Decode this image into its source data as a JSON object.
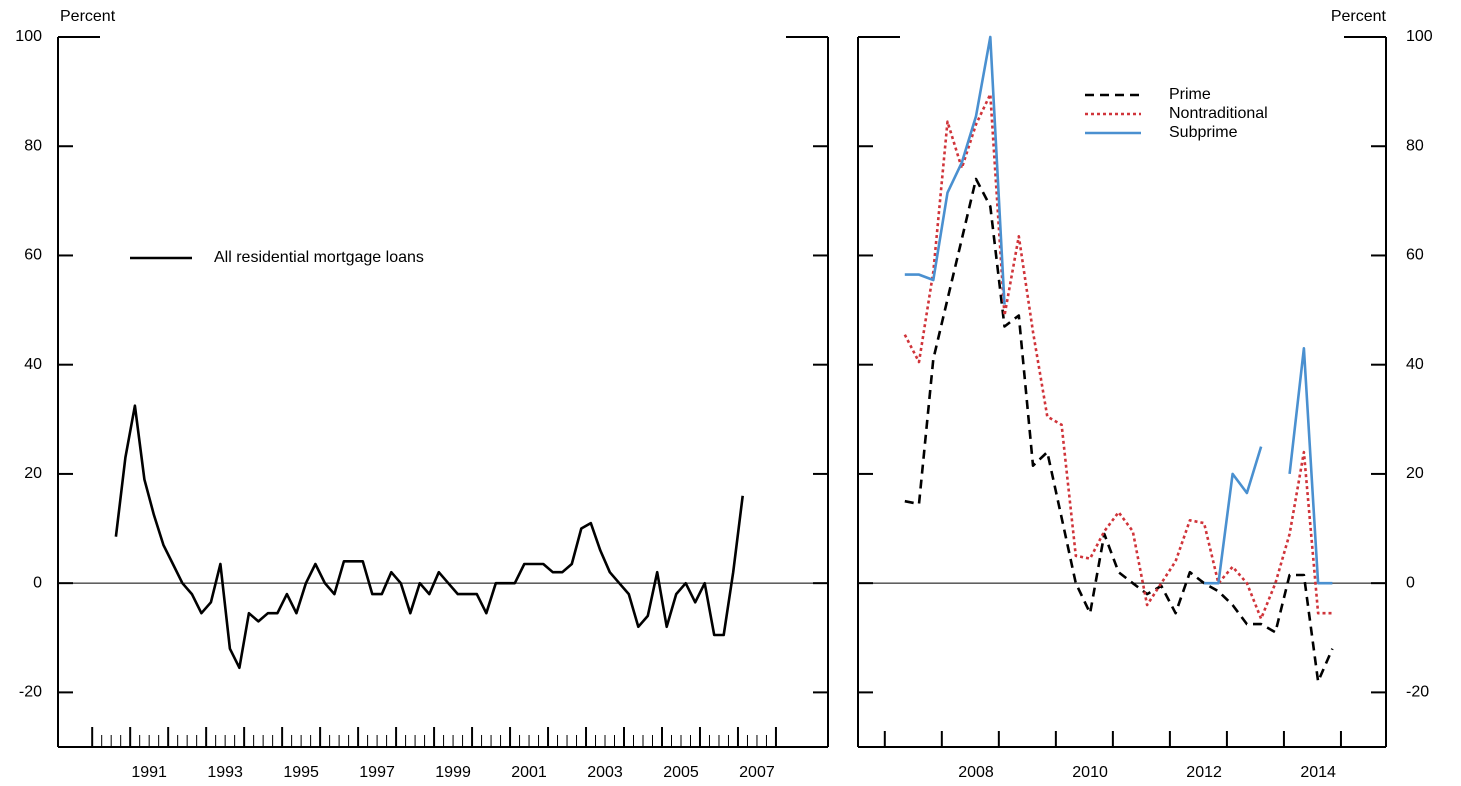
{
  "chart_data": [
    {
      "type": "line",
      "y_label": "Percent",
      "x": [
        1990.625,
        1990.875,
        1991.125,
        1991.375,
        1991.625,
        1991.875,
        1992.125,
        1992.375,
        1992.625,
        1992.875,
        1993.125,
        1993.375,
        1993.625,
        1993.875,
        1994.125,
        1994.375,
        1994.625,
        1994.875,
        1995.125,
        1995.375,
        1995.625,
        1995.875,
        1996.125,
        1996.375,
        1996.625,
        1996.875,
        1997.125,
        1997.375,
        1997.625,
        1997.875,
        1998.125,
        1998.375,
        1998.625,
        1998.875,
        1999.125,
        1999.375,
        1999.625,
        1999.875,
        2000.125,
        2000.375,
        2000.625,
        2000.875,
        2001.125,
        2001.375,
        2001.625,
        2001.875,
        2002.125,
        2002.375,
        2002.625,
        2002.875,
        2003.125,
        2003.375,
        2003.625,
        2003.875,
        2004.125,
        2004.375,
        2004.625,
        2004.875,
        2005.125,
        2005.375,
        2005.625,
        2005.875,
        2006.125,
        2006.375,
        2006.625,
        2006.875,
        2007.125
      ],
      "series": [
        {
          "name": "All residential mortgage loans",
          "color": "#000000",
          "dash": "none",
          "values": [
            8.5,
            23,
            32.5,
            19,
            12.5,
            7,
            3.5,
            0,
            -2,
            -5.5,
            -3.5,
            3.5,
            -12,
            -15.5,
            -5.5,
            -7,
            -5.5,
            -5.5,
            -2,
            -5.5,
            0,
            3.5,
            0,
            -2,
            4,
            4,
            4,
            -2,
            -2,
            2,
            0,
            -5.5,
            0,
            -2,
            2,
            0,
            -2,
            -2,
            -2,
            -5.5,
            0,
            0,
            0,
            3.5,
            3.5,
            3.5,
            2,
            2,
            3.5,
            10,
            11,
            6,
            2,
            0,
            -2,
            -8,
            -6,
            2,
            -8,
            -2,
            0,
            -3.5,
            0,
            -9.5,
            -9.5,
            2,
            16
          ]
        }
      ],
      "xlim": [
        1989.1,
        2009.37
      ],
      "xticks": [
        {
          "value": 1991.5,
          "label": "1991"
        },
        {
          "value": 1993.5,
          "label": "1993"
        },
        {
          "value": 1995.5,
          "label": "1995"
        },
        {
          "value": 1997.5,
          "label": "1997"
        },
        {
          "value": 1999.5,
          "label": "1999"
        },
        {
          "value": 2001.5,
          "label": "2001"
        },
        {
          "value": 2003.5,
          "label": "2003"
        },
        {
          "value": 2005.5,
          "label": "2005"
        },
        {
          "value": 2007.5,
          "label": "2007"
        }
      ],
      "ylim": [
        -30,
        100
      ],
      "yticks": [
        -20,
        0,
        20,
        40,
        60,
        80,
        100
      ],
      "axis_side": "left"
    },
    {
      "type": "line",
      "y_label": "Percent",
      "x": [
        2006.75,
        2007,
        2007.25,
        2007.5,
        2007.75,
        2008,
        2008.25,
        2008.5,
        2008.75,
        2009,
        2009.25,
        2009.5,
        2009.75,
        2010,
        2010.25,
        2010.5,
        2010.75,
        2011,
        2011.25,
        2011.5,
        2011.75,
        2012,
        2012.25,
        2012.5,
        2012.75,
        2013,
        2013.25,
        2013.5,
        2013.75,
        2014,
        2014.25
      ],
      "series": [
        {
          "name": "Prime",
          "color": "#000000",
          "dash": "9,6",
          "values": [
            15,
            14.5,
            41,
            52,
            63,
            74,
            69,
            47,
            49,
            21.5,
            24,
            12,
            0,
            -5.5,
            9,
            2,
            0,
            -2,
            -0.5,
            -5.5,
            2,
            0,
            -1.5,
            -4,
            -7.5,
            -7.5,
            -9,
            1.5,
            1.5,
            -18,
            -12
          ]
        },
        {
          "name": "Nontraditional",
          "color": "#d0343a",
          "dash": "3,3",
          "values": [
            45.5,
            40.5,
            57,
            84.5,
            76,
            84,
            89.5,
            49,
            63.5,
            46,
            30.5,
            29,
            5,
            4.5,
            9.5,
            13,
            9.5,
            -4,
            0,
            4,
            11.5,
            11,
            0,
            3,
            0,
            -6.5,
            0,
            9,
            24,
            -5.5,
            -5.5
          ]
        },
        {
          "name": "Subprime",
          "color": "#4a90d0",
          "dash": "none",
          "values": [
            56.5,
            56.5,
            55.5,
            71.5,
            77,
            85.5,
            100,
            51,
            null,
            null,
            null,
            null,
            null,
            null,
            null,
            null,
            null,
            null,
            null,
            null,
            null,
            0,
            0,
            20,
            16.5,
            25,
            null,
            20,
            43,
            0,
            0
          ]
        }
      ],
      "xlim": [
        2005.93,
        2015.19
      ],
      "xticks": [
        {
          "value": 2008,
          "label": "2008"
        },
        {
          "value": 2010,
          "label": "2010"
        },
        {
          "value": 2012,
          "label": "2012"
        },
        {
          "value": 2014,
          "label": "2014"
        }
      ],
      "ylim": [
        -30,
        100
      ],
      "yticks": [
        -20,
        0,
        20,
        40,
        60,
        80,
        100
      ],
      "axis_side": "right"
    }
  ]
}
